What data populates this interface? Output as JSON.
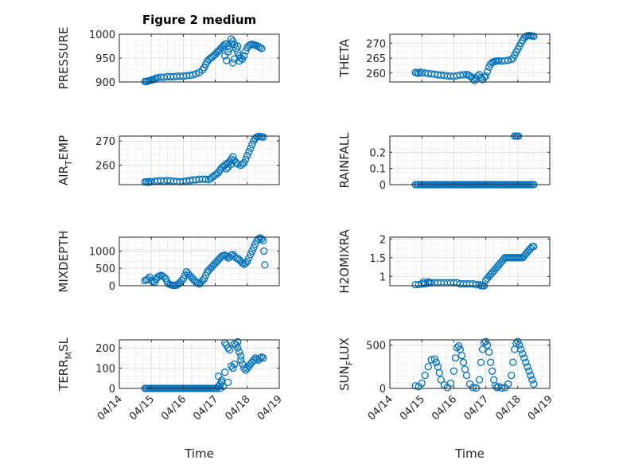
{
  "figure": {
    "title": "Figure 2 medium",
    "marker_color": "#0072BD",
    "axes_color": "#262626",
    "grid_color": "#bfbfbf"
  },
  "x_axis": {
    "label": "Time",
    "tick_labels": [
      "04/14",
      "04/15",
      "04/16",
      "04/17",
      "04/18",
      "04/19"
    ],
    "range_days": [
      0,
      5
    ]
  },
  "chart_data": [
    {
      "type": "scatter",
      "ylabel": "PRESSURE",
      "ylim": [
        900,
        1000
      ],
      "yticks": [
        900,
        950,
        1000
      ],
      "ytick_labels": [
        "900",
        "950",
        "1000"
      ],
      "x": [
        0.8,
        0.85,
        0.9,
        0.95,
        1.0,
        1.05,
        1.1,
        1.15,
        1.2,
        1.3,
        1.4,
        1.5,
        1.6,
        1.7,
        1.8,
        1.9,
        2.0,
        2.1,
        2.2,
        2.3,
        2.4,
        2.5,
        2.6,
        2.65,
        2.7,
        2.75,
        2.8,
        2.85,
        2.9,
        2.95,
        3.0,
        3.05,
        3.1,
        3.15,
        3.2,
        3.25,
        3.3,
        3.35,
        3.4,
        3.45,
        3.5,
        3.55,
        3.6,
        3.65,
        3.7,
        3.75,
        3.8,
        3.85,
        3.9,
        3.95,
        4.0,
        4.05,
        4.1,
        4.15,
        4.2,
        4.25,
        4.3,
        4.35,
        4.4,
        4.45,
        3.3,
        3.35,
        3.4,
        3.5,
        3.55,
        3.6,
        3.7,
        3.75
      ],
      "y": [
        901,
        901,
        902,
        903,
        904,
        905,
        906,
        908,
        909,
        910,
        910,
        911,
        911,
        911,
        912,
        912,
        912,
        913,
        914,
        915,
        917,
        920,
        925,
        930,
        937,
        943,
        947,
        950,
        952,
        955,
        958,
        962,
        965,
        968,
        972,
        976,
        979,
        980,
        975,
        970,
        980,
        985,
        978,
        970,
        962,
        955,
        950,
        948,
        955,
        965,
        972,
        976,
        978,
        979,
        978,
        977,
        976,
        974,
        972,
        970,
        955,
        945,
        963,
        990,
        940,
        948,
        975,
        944
      ]
    },
    {
      "type": "scatter",
      "ylabel": "THETA",
      "ylim": [
        257,
        273
      ],
      "yticks": [
        260,
        265,
        270
      ],
      "ytick_labels": [
        "260",
        "265",
        "270"
      ],
      "x": [
        0.8,
        0.85,
        0.9,
        0.95,
        1.0,
        1.1,
        1.2,
        1.3,
        1.4,
        1.5,
        1.6,
        1.7,
        1.8,
        1.9,
        2.0,
        2.1,
        2.2,
        2.3,
        2.4,
        2.45,
        2.5,
        2.55,
        2.6,
        2.65,
        2.7,
        2.75,
        2.8,
        2.85,
        2.9,
        2.95,
        3.0,
        3.05,
        3.1,
        3.15,
        3.2,
        3.25,
        3.3,
        3.35,
        3.4,
        3.5,
        3.6,
        3.7,
        3.8,
        3.85,
        3.9,
        3.95,
        4.0,
        4.05,
        4.1,
        4.15,
        4.2,
        4.25,
        4.3,
        4.35,
        4.4,
        4.45,
        4.5
      ],
      "y": [
        260.2,
        260.0,
        259.9,
        260.3,
        260.1,
        260.0,
        259.8,
        259.7,
        259.6,
        259.4,
        259.3,
        259.2,
        259.0,
        259.0,
        258.9,
        259.1,
        259.3,
        259.4,
        259.5,
        259.3,
        259.0,
        258.7,
        258.0,
        257.5,
        258.2,
        259.0,
        259.5,
        258.5,
        257.8,
        258.6,
        259.0,
        260.5,
        262.0,
        263.0,
        263.5,
        263.8,
        264.0,
        264.0,
        264.1,
        264.0,
        264.1,
        264.3,
        264.5,
        265.0,
        266.0,
        267.0,
        268.0,
        269.0,
        270.0,
        271.0,
        271.8,
        272.2,
        272.5,
        272.6,
        272.5,
        272.4,
        272.3
      ]
    },
    {
      "type": "scatter",
      "ylabel_main": "AIR",
      "ylabel_sub": "T",
      "ylabel_tail": "EMP",
      "ylim": [
        252,
        272
      ],
      "yticks": [
        260,
        270
      ],
      "ytick_labels": [
        "260",
        "270"
      ],
      "x": [
        0.8,
        0.85,
        0.9,
        0.95,
        1.0,
        1.1,
        1.2,
        1.3,
        1.4,
        1.5,
        1.6,
        1.7,
        1.8,
        1.9,
        2.0,
        2.1,
        2.2,
        2.3,
        2.4,
        2.5,
        2.6,
        2.7,
        2.8,
        2.85,
        2.9,
        2.95,
        3.0,
        3.05,
        3.1,
        3.15,
        3.2,
        3.25,
        3.3,
        3.35,
        3.4,
        3.45,
        3.5,
        3.55,
        3.6,
        3.65,
        3.7,
        3.8,
        3.85,
        3.9,
        3.95,
        4.0,
        4.05,
        4.1,
        4.15,
        4.2,
        4.25,
        4.3,
        4.35,
        4.4,
        4.45,
        4.5,
        3.35,
        3.4,
        3.5
      ],
      "y": [
        253.1,
        253.2,
        253.0,
        253.3,
        253.2,
        253.4,
        253.5,
        253.6,
        253.5,
        253.7,
        253.6,
        253.4,
        253.3,
        253.2,
        253.3,
        253.5,
        253.7,
        253.9,
        254.0,
        254.2,
        254.3,
        254.2,
        254.1,
        254.5,
        255.0,
        255.5,
        256.0,
        256.5,
        257.0,
        258.0,
        259.0,
        259.5,
        260.0,
        260.5,
        261.0,
        261.5,
        262.5,
        263.5,
        262.0,
        261.0,
        260.5,
        260.0,
        260.5,
        261.0,
        262.5,
        264.0,
        265.5,
        267.0,
        268.5,
        270.0,
        271.0,
        271.6,
        271.9,
        271.8,
        271.7,
        271.6,
        258.5,
        259.2,
        260.4
      ]
    },
    {
      "type": "scatter",
      "ylabel": "RAINFALL",
      "ylim": [
        0,
        0.3
      ],
      "yticks": [
        0,
        0.1,
        0.2
      ],
      "ytick_labels": [
        "0",
        "0.1",
        "0.2"
      ],
      "x": [
        0.8,
        0.85,
        0.9,
        0.95,
        1.0,
        1.05,
        1.1,
        1.15,
        1.2,
        1.25,
        1.3,
        1.35,
        1.4,
        1.45,
        1.5,
        1.55,
        1.6,
        1.65,
        1.7,
        1.75,
        1.8,
        1.85,
        1.9,
        1.95,
        2.0,
        2.05,
        2.1,
        2.15,
        2.2,
        2.25,
        2.3,
        2.35,
        2.4,
        2.45,
        2.5,
        2.55,
        2.6,
        2.65,
        2.7,
        2.75,
        2.8,
        2.85,
        2.9,
        2.95,
        3.0,
        3.05,
        3.1,
        3.15,
        3.2,
        3.25,
        3.3,
        3.35,
        3.4,
        3.45,
        3.5,
        3.55,
        3.6,
        3.65,
        3.7,
        3.75,
        3.8,
        3.85,
        3.9,
        3.95,
        4.0,
        4.05,
        4.1,
        4.15,
        4.2,
        4.25,
        4.3,
        4.35,
        4.4,
        4.45,
        4.5,
        3.9,
        3.95,
        4.0,
        4.02
      ],
      "y": [
        0,
        0,
        0,
        0,
        0,
        0,
        0,
        0,
        0,
        0,
        0,
        0,
        0,
        0,
        0,
        0,
        0,
        0,
        0,
        0,
        0,
        0,
        0,
        0,
        0,
        0,
        0,
        0,
        0,
        0,
        0,
        0,
        0,
        0,
        0,
        0,
        0,
        0,
        0,
        0,
        0,
        0,
        0,
        0,
        0,
        0,
        0,
        0,
        0,
        0,
        0,
        0,
        0,
        0,
        0,
        0,
        0,
        0,
        0,
        0,
        0,
        0,
        0,
        0,
        0,
        0,
        0,
        0,
        0,
        0,
        0,
        0,
        0,
        0,
        0,
        0.3,
        0.3,
        0.3,
        0.3
      ]
    },
    {
      "type": "scatter",
      "ylabel": "MIXDEPTH",
      "ylim": [
        0,
        1400
      ],
      "yticks": [
        0,
        500,
        1000
      ],
      "ytick_labels": [
        "0",
        "500",
        "1000"
      ],
      "x": [
        0.8,
        0.85,
        0.9,
        0.95,
        1.0,
        1.05,
        1.1,
        1.15,
        1.2,
        1.25,
        1.3,
        1.35,
        1.4,
        1.45,
        1.5,
        1.55,
        1.6,
        1.65,
        1.7,
        1.75,
        1.8,
        1.85,
        1.9,
        1.95,
        2.0,
        2.05,
        2.1,
        2.15,
        2.2,
        2.25,
        2.3,
        2.35,
        2.4,
        2.45,
        2.5,
        2.55,
        2.6,
        2.65,
        2.7,
        2.75,
        2.8,
        2.85,
        2.9,
        2.95,
        3.0,
        3.05,
        3.1,
        3.15,
        3.2,
        3.25,
        3.3,
        3.35,
        3.4,
        3.45,
        3.5,
        3.55,
        3.6,
        3.65,
        3.7,
        3.75,
        3.8,
        3.85,
        3.9,
        3.95,
        4.0,
        4.05,
        4.1,
        4.15,
        4.2,
        4.25,
        4.3,
        4.35,
        4.4,
        4.45,
        4.5,
        4.52,
        4.55
      ],
      "y": [
        150,
        170,
        200,
        250,
        150,
        120,
        100,
        180,
        250,
        280,
        300,
        280,
        250,
        200,
        100,
        50,
        30,
        20,
        10,
        15,
        20,
        50,
        100,
        150,
        200,
        300,
        400,
        350,
        300,
        250,
        200,
        150,
        100,
        80,
        50,
        100,
        150,
        200,
        300,
        400,
        450,
        500,
        550,
        600,
        650,
        700,
        750,
        800,
        850,
        870,
        880,
        850,
        800,
        820,
        880,
        900,
        850,
        800,
        780,
        750,
        700,
        650,
        620,
        650,
        700,
        800,
        900,
        1000,
        1100,
        1200,
        1300,
        1350,
        1380,
        1350,
        1300,
        1000,
        600
      ]
    },
    {
      "type": "scatter",
      "ylabel": "H2OMIXRA",
      "ylim": [
        0.75,
        2.05
      ],
      "yticks": [
        1,
        1.5,
        2
      ],
      "ytick_labels": [
        "1",
        "1.5",
        "2"
      ],
      "x": [
        0.8,
        0.9,
        1.0,
        1.1,
        1.2,
        1.3,
        1.4,
        1.5,
        1.6,
        1.7,
        1.8,
        1.9,
        2.0,
        2.1,
        2.2,
        2.3,
        2.4,
        2.5,
        2.6,
        2.7,
        2.8,
        2.85,
        2.9,
        2.95,
        3.0,
        3.05,
        3.1,
        3.15,
        3.2,
        3.25,
        3.3,
        3.35,
        3.4,
        3.45,
        3.5,
        3.55,
        3.6,
        3.65,
        3.7,
        3.75,
        3.8,
        3.85,
        3.9,
        3.95,
        4.0,
        4.05,
        4.1,
        4.15,
        4.2,
        4.25,
        4.3,
        4.35,
        4.4,
        4.45,
        4.5,
        1.0,
        1.05,
        1.2,
        1.25
      ],
      "y": [
        0.78,
        0.78,
        0.8,
        0.8,
        0.82,
        0.83,
        0.83,
        0.83,
        0.83,
        0.83,
        0.83,
        0.83,
        0.83,
        0.83,
        0.8,
        0.8,
        0.8,
        0.8,
        0.8,
        0.78,
        0.78,
        0.75,
        0.75,
        0.75,
        0.9,
        0.95,
        1.0,
        1.05,
        1.1,
        1.15,
        1.2,
        1.25,
        1.3,
        1.35,
        1.4,
        1.45,
        1.5,
        1.5,
        1.5,
        1.5,
        1.5,
        1.5,
        1.5,
        1.5,
        1.5,
        1.5,
        1.5,
        1.5,
        1.55,
        1.6,
        1.65,
        1.7,
        1.75,
        1.8,
        1.8,
        0.8,
        0.85,
        0.85,
        0.83
      ]
    },
    {
      "type": "scatter",
      "ylabel_main": "TERR",
      "ylabel_sub": "M",
      "ylabel_tail": "SL",
      "ylim": [
        0,
        240
      ],
      "yticks": [
        0,
        100,
        200
      ],
      "ytick_labels": [
        "0",
        "100",
        "200"
      ],
      "x": [
        0.8,
        0.85,
        0.9,
        0.95,
        1.0,
        1.05,
        1.1,
        1.15,
        1.2,
        1.25,
        1.3,
        1.35,
        1.4,
        1.45,
        1.5,
        1.55,
        1.6,
        1.65,
        1.7,
        1.75,
        1.8,
        1.85,
        1.9,
        1.95,
        2.0,
        2.05,
        2.1,
        2.15,
        2.2,
        2.25,
        2.3,
        2.35,
        2.4,
        2.45,
        2.5,
        2.55,
        2.6,
        2.65,
        2.7,
        2.75,
        2.8,
        2.85,
        2.9,
        2.95,
        3.0,
        3.05,
        3.1,
        3.15,
        3.2,
        3.25,
        3.3,
        3.35,
        3.4,
        3.45,
        3.5,
        3.55,
        3.6,
        3.65,
        3.7,
        3.75,
        3.8,
        3.85,
        3.9,
        3.95,
        4.0,
        4.05,
        4.1,
        4.15,
        4.2,
        4.25,
        4.3,
        4.35,
        4.4,
        4.45,
        4.5,
        3.1,
        3.15,
        3.2,
        3.3,
        3.4,
        3.6,
        3.7,
        3.8
      ],
      "y": [
        0,
        0,
        0,
        0,
        0,
        0,
        0,
        0,
        0,
        0,
        0,
        0,
        0,
        0,
        0,
        0,
        0,
        0,
        0,
        0,
        0,
        0,
        0,
        0,
        0,
        0,
        0,
        0,
        0,
        0,
        0,
        0,
        0,
        0,
        0,
        0,
        0,
        0,
        0,
        0,
        0,
        0,
        0,
        0,
        0,
        0,
        10,
        20,
        30,
        10,
        225,
        215,
        200,
        190,
        110,
        100,
        120,
        215,
        200,
        180,
        160,
        120,
        100,
        90,
        100,
        110,
        120,
        130,
        140,
        150,
        145,
        140,
        150,
        155,
        150,
        60,
        0,
        40,
        80,
        30,
        220,
        230,
        140
      ]
    },
    {
      "type": "scatter",
      "ylabel_main": "SUN",
      "ylabel_sub": "F",
      "ylabel_tail": "LUX",
      "ylim": [
        0,
        560
      ],
      "yticks": [
        0,
        500
      ],
      "ytick_labels": [
        "0",
        "500"
      ],
      "x": [
        0.8,
        0.9,
        1.0,
        1.1,
        1.2,
        1.3,
        1.4,
        1.45,
        1.5,
        1.55,
        1.6,
        1.7,
        1.8,
        1.9,
        2.0,
        2.05,
        2.1,
        2.15,
        2.2,
        2.25,
        2.3,
        2.35,
        2.4,
        2.5,
        2.6,
        2.7,
        2.8,
        2.85,
        2.9,
        2.95,
        3.0,
        3.05,
        3.1,
        3.15,
        3.2,
        3.25,
        3.3,
        3.35,
        3.4,
        3.5,
        3.6,
        3.7,
        3.8,
        3.85,
        3.9,
        3.95,
        4.0,
        4.05,
        4.1,
        4.15,
        4.2,
        4.25,
        4.3,
        4.35,
        4.4,
        4.45,
        4.5
      ],
      "y": [
        30,
        20,
        60,
        150,
        250,
        330,
        340,
        300,
        250,
        180,
        100,
        40,
        10,
        60,
        200,
        350,
        470,
        490,
        450,
        380,
        300,
        220,
        150,
        50,
        10,
        5,
        100,
        300,
        450,
        530,
        540,
        500,
        420,
        300,
        200,
        100,
        30,
        10,
        20,
        5,
        10,
        50,
        150,
        300,
        450,
        520,
        540,
        500,
        450,
        400,
        350,
        300,
        250,
        200,
        150,
        100,
        50
      ]
    }
  ]
}
